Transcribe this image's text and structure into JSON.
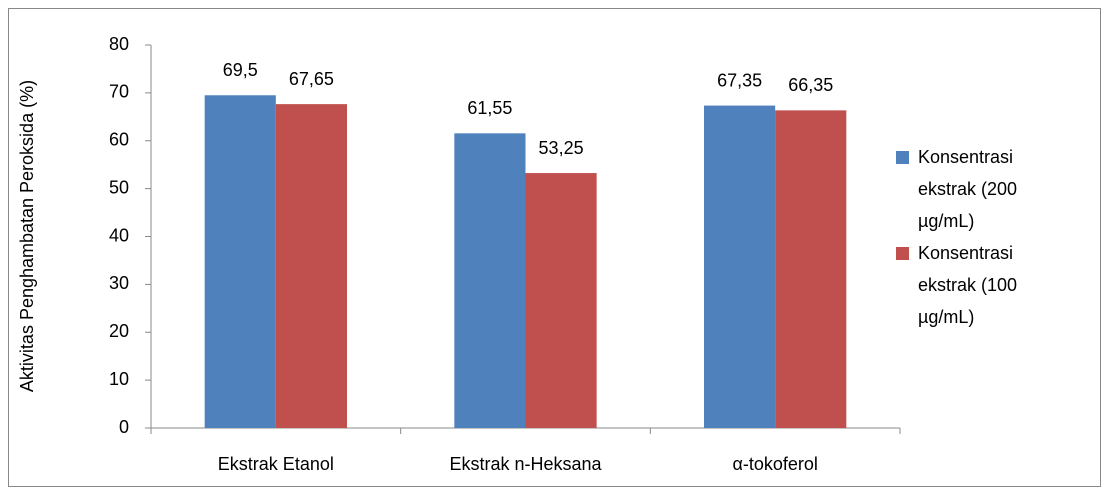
{
  "chart_data": {
    "type": "bar",
    "ylabel": "Aktivitas Penghambatan Peroksida (%)",
    "categories": [
      "Ekstrak Etanol",
      "Ekstrak n-Heksana",
      "α-tokoferol"
    ],
    "series": [
      {
        "name": "Konsentrasi ekstrak (200 µg/mL)",
        "color": "#4f81bd",
        "values": [
          69.5,
          61.55,
          67.35
        ],
        "value_labels": [
          "69,5",
          "61,55",
          "67,35"
        ]
      },
      {
        "name": "Konsentrasi ekstrak (100 µg/mL)",
        "color": "#c0504d",
        "values": [
          67.65,
          53.25,
          66.35
        ],
        "value_labels": [
          "67,65",
          "53,25",
          "66,35"
        ]
      }
    ],
    "ylim": [
      0,
      80
    ],
    "yticks": [
      0,
      10,
      20,
      30,
      40,
      50,
      60,
      70,
      80
    ],
    "legend": "right"
  }
}
